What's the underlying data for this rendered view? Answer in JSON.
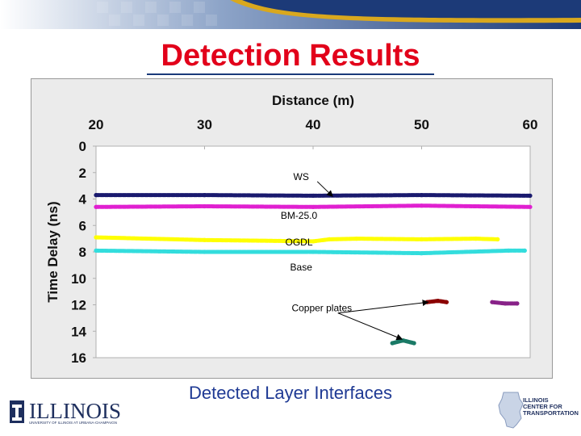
{
  "slide": {
    "title": "Detection Results",
    "caption": "Detected Layer Interfaces",
    "accent_color": "#e2001a",
    "caption_color": "#1f3a94"
  },
  "logos": {
    "left": {
      "text": "ILLINOIS",
      "subtext": "UNIVERSITY OF ILLINOIS AT URBANA-CHAMPAIGN"
    },
    "right": {
      "line1": "ILLINOIS",
      "line2": "CENTER FOR",
      "line3": "TRANSPORTATION"
    }
  },
  "chart_data": {
    "type": "scatter",
    "title": "",
    "xlabel": "Distance (m)",
    "ylabel": "Time Delay (ns)",
    "x_axis_position": "top",
    "y_axis_inverted": true,
    "xlim": [
      20,
      60
    ],
    "ylim": [
      0,
      16
    ],
    "xticks": [
      "20",
      "30",
      "40",
      "50",
      "60"
    ],
    "yticks": [
      "0",
      "2",
      "4",
      "6",
      "8",
      "10",
      "12",
      "14",
      "16"
    ],
    "grid": false,
    "series": [
      {
        "color": "#1a1a6e",
        "x": [
          20,
          30,
          40,
          50,
          60
        ],
        "y": [
          3.7,
          3.7,
          3.75,
          3.7,
          3.75
        ]
      },
      {
        "color": "#e020d0",
        "x": [
          20,
          30,
          40,
          50,
          60
        ],
        "y": [
          4.6,
          4.55,
          4.6,
          4.5,
          4.6
        ]
      },
      {
        "color": "#ffff00",
        "x": [
          20,
          30,
          40,
          41.5,
          44,
          50,
          55,
          57
        ],
        "y": [
          6.9,
          7.1,
          7.2,
          7.05,
          7.0,
          7.05,
          7.0,
          7.05
        ]
      },
      {
        "color": "#33dddd",
        "x": [
          20,
          30,
          40,
          50,
          58,
          59.5
        ],
        "y": [
          7.9,
          8.0,
          8.0,
          8.1,
          7.9,
          7.9
        ]
      },
      {
        "color": "#8b0000",
        "x": [
          50.5,
          51.5,
          52.3
        ],
        "y": [
          11.8,
          11.7,
          11.8
        ]
      },
      {
        "color": "#882288",
        "x": [
          56.5,
          57.7,
          58.8
        ],
        "y": [
          11.8,
          11.9,
          11.9
        ]
      },
      {
        "color": "#1a7a66",
        "x": [
          47.3,
          48.3,
          49.3
        ],
        "y": [
          14.9,
          14.7,
          14.9
        ]
      }
    ],
    "annotations": [
      {
        "text": "WS",
        "x": 38.9,
        "y": 2.55,
        "arrow_to": [
          41.8,
          3.8
        ]
      },
      {
        "text": "BM-25.0",
        "x": 38.7,
        "y": 5.5,
        "arrow_to": null
      },
      {
        "text": "OGDL",
        "x": 38.7,
        "y": 7.5,
        "arrow_to": null
      },
      {
        "text": "Base",
        "x": 38.9,
        "y": 9.4,
        "arrow_to": null
      },
      {
        "text": "Copper plates",
        "x": 40.8,
        "y": 12.5,
        "arrow_to": [
          [
            50.6,
            11.8
          ],
          [
            48.2,
            14.6
          ]
        ]
      }
    ]
  }
}
